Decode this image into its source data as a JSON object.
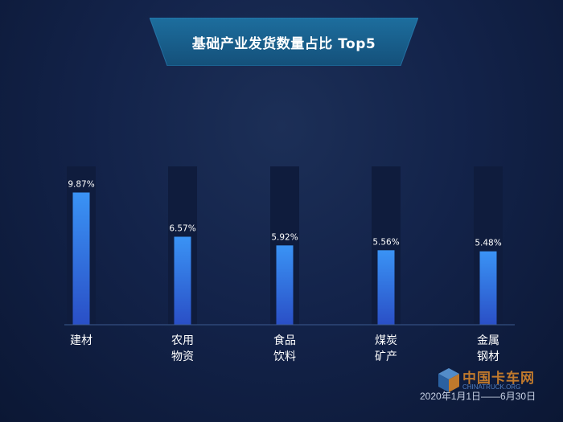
{
  "title": "基础产业发货数量占比 Top5",
  "footer": {
    "date_range": "2020年1月1日——6月30日"
  },
  "watermark": {
    "brand": "中国卡车网",
    "domain": "CHINATRUCK.ORG"
  },
  "colors": {
    "bar_top": "#3a93f5",
    "bar_bottom": "#2a52c9",
    "bar_track": "#0f1c3d",
    "axis": "#3b5a8f",
    "label": "#ffffff",
    "banner": "#1a5e8c"
  },
  "chart_data": {
    "type": "bar",
    "title": "基础产业发货数量占比 Top5",
    "categories": [
      [
        "建材"
      ],
      [
        "农用",
        "物资"
      ],
      [
        "食品",
        "饮料"
      ],
      [
        "煤炭",
        "矿产"
      ],
      [
        "金属",
        "钢材"
      ]
    ],
    "values": [
      9.87,
      6.57,
      5.92,
      5.56,
      5.48
    ],
    "value_labels": [
      "9.87%",
      "6.57%",
      "5.92%",
      "5.56%",
      "5.48%"
    ],
    "unit": "%",
    "ylim": [
      0,
      12
    ],
    "grid": false,
    "legend": "none"
  }
}
